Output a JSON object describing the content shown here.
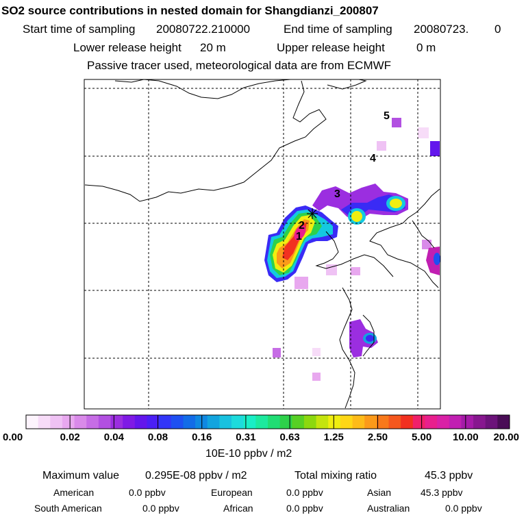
{
  "header": {
    "title": "SO2 source contributions in nested domain for Shangdianzi_200807",
    "start_label": "Start time of sampling",
    "start_value": "20080722.210000",
    "end_label": "End time of sampling",
    "end_value": "20080723.",
    "end_suffix": "0",
    "lower_label": "Lower release height",
    "lower_value": "20 m",
    "upper_label": "Upper release height",
    "upper_value": "0 m",
    "note": "Passive tracer used, meteorological data are from ECMWF"
  },
  "map": {
    "source_labels": [
      "1",
      "2",
      "3",
      "4",
      "5"
    ],
    "receptor_marker": "station-cross"
  },
  "colorbar": {
    "tick_labels": [
      "0.00",
      "0.02",
      "0.04",
      "0.08",
      "0.16",
      "0.31",
      "0.63",
      "1.25",
      "2.50",
      "5.00",
      "10.00",
      "20.00"
    ],
    "unit": "10E-10 ppbv / m2",
    "colors": [
      "#fdf4fd",
      "#f7dcf8",
      "#efc2f4",
      "#e8a8ef",
      "#d98ae9",
      "#c66de5",
      "#b250e1",
      "#9b2ee0",
      "#7f1ae5",
      "#6316ec",
      "#4b1ff5",
      "#3236f8",
      "#1e50f2",
      "#126ce8",
      "#0f88e2",
      "#12a4de",
      "#18c1df",
      "#1ddbdc",
      "#19eec6",
      "#1ce99e",
      "#20dd74",
      "#2dd14a",
      "#57d024",
      "#8cd80f",
      "#c4e40e",
      "#f0ee10",
      "#fed716",
      "#fdbb19",
      "#fb9a1a",
      "#f8791b",
      "#f5571d",
      "#f23020",
      "#f0206a",
      "#e81f8d",
      "#d921a6",
      "#c11fb2",
      "#a51ba8",
      "#87178f",
      "#6c137a",
      "#4a0d56"
    ]
  },
  "summary": {
    "max_label": "Maximum value",
    "max_value": "0.295E-08 ppbv / m2",
    "total_label": "Total mixing ratio",
    "total_value": "45.3 ppbv",
    "regions": [
      {
        "name": "American",
        "value": "0.0 ppbv"
      },
      {
        "name": "European",
        "value": "0.0 ppbv"
      },
      {
        "name": "Asian",
        "value": "45.3 ppbv"
      },
      {
        "name": "South American",
        "value": "0.0 ppbv"
      },
      {
        "name": "African",
        "value": "0.0 ppbv"
      },
      {
        "name": "Australian",
        "value": "0.0 ppbv"
      }
    ]
  }
}
